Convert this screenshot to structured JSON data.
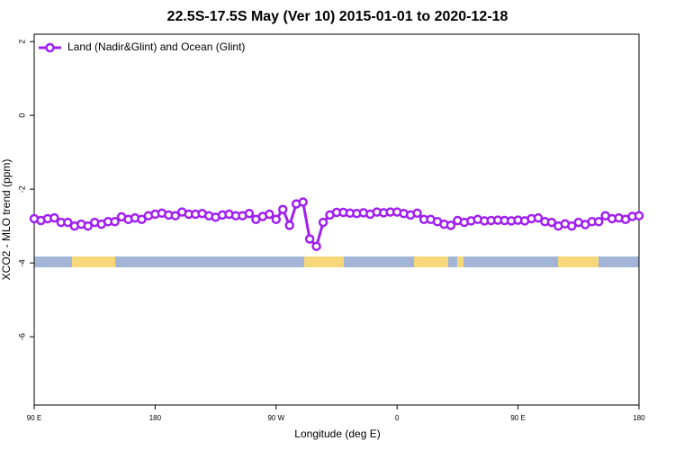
{
  "chart_data": {
    "type": "line",
    "title": "22.5S-17.5S May (Ver 10)   2015-01-01 to 2020-12-18",
    "x_label": "Longitude (deg E)",
    "y_label": "XCO2 - MLO trend (ppm)",
    "xlim": [
      90,
      540
    ],
    "ylim": [
      -7.85,
      2.2
    ],
    "xticks": [
      {
        "value": 90,
        "label": "90 E"
      },
      180,
      {
        "value": 270,
        "label": "90 W"
      },
      {
        "value": 360,
        "label": "0"
      },
      {
        "value": 450,
        "label": "90 E"
      },
      {
        "value": 540,
        "label": "180"
      }
    ],
    "yticks": [
      2,
      0,
      -2,
      -4,
      -6
    ],
    "legend": "upper left",
    "x": [
      90,
      95,
      100,
      105,
      110,
      115,
      120,
      125,
      130,
      135,
      140,
      145,
      150,
      155,
      160,
      165,
      170,
      175,
      180,
      185,
      190,
      195,
      200,
      205,
      210,
      215,
      220,
      225,
      230,
      235,
      240,
      245,
      250,
      255,
      260,
      265,
      270,
      275,
      280,
      285,
      290,
      295,
      300,
      305,
      310,
      315,
      320,
      325,
      330,
      335,
      340,
      345,
      350,
      355,
      360,
      365,
      370,
      375,
      380,
      385,
      390,
      395,
      400,
      405,
      410,
      415,
      420,
      425,
      430,
      435,
      440,
      445,
      450,
      455,
      460,
      465,
      470,
      475,
      480,
      485,
      490,
      495,
      500,
      505,
      510,
      515,
      520,
      525,
      530,
      535,
      540
    ],
    "series": [
      {
        "name": "Land (Nadir&Glint) and Ocean (Glint)",
        "color": "#a020f0",
        "values": [
          -2.8,
          -2.85,
          -2.8,
          -2.78,
          -2.9,
          -2.9,
          -3.0,
          -2.95,
          -3.0,
          -2.9,
          -2.95,
          -2.88,
          -2.88,
          -2.75,
          -2.82,
          -2.78,
          -2.82,
          -2.72,
          -2.68,
          -2.65,
          -2.7,
          -2.72,
          -2.62,
          -2.68,
          -2.68,
          -2.66,
          -2.72,
          -2.76,
          -2.7,
          -2.68,
          -2.72,
          -2.72,
          -2.66,
          -2.82,
          -2.74,
          -2.68,
          -2.82,
          -2.55,
          -2.98,
          -2.4,
          -2.35,
          -3.35,
          -3.55,
          -2.9,
          -2.7,
          -2.63,
          -2.63,
          -2.65,
          -2.66,
          -2.64,
          -2.68,
          -2.62,
          -2.64,
          -2.62,
          -2.62,
          -2.66,
          -2.7,
          -2.65,
          -2.82,
          -2.82,
          -2.88,
          -2.95,
          -2.98,
          -2.85,
          -2.9,
          -2.86,
          -2.82,
          -2.86,
          -2.85,
          -2.84,
          -2.85,
          -2.86,
          -2.84,
          -2.86,
          -2.8,
          -2.78,
          -2.88,
          -2.9,
          -3.0,
          -2.94,
          -3.0,
          -2.9,
          -2.96,
          -2.88,
          -2.88,
          -2.72,
          -2.8,
          -2.78,
          -2.82,
          -2.74,
          -2.72
        ]
      }
    ]
  }
}
